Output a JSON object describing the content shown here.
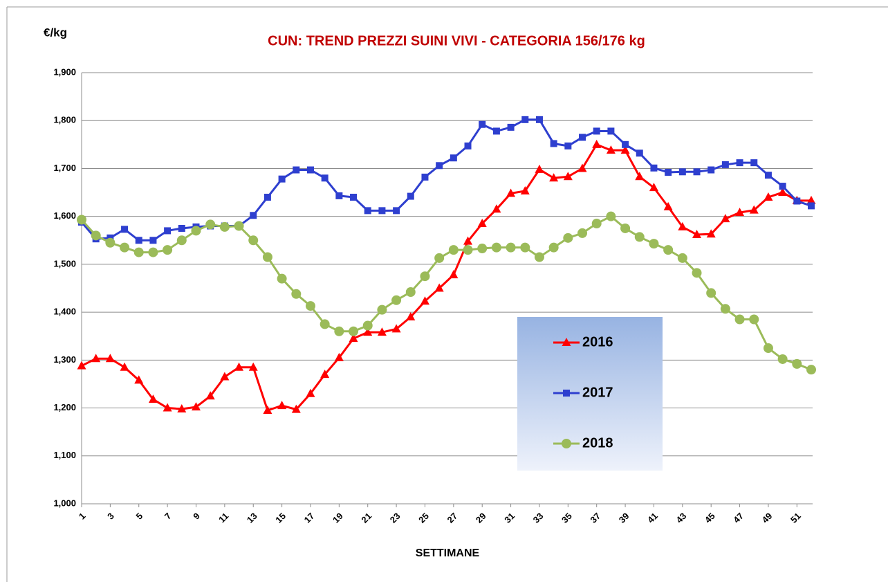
{
  "chart_data": {
    "type": "line",
    "title": "CUN:  TREND PREZZI SUINI VIVI - CATEGORIA 156/176 kg",
    "y_label": "€/kg",
    "x_label": "SETTIMANE",
    "x": [
      1,
      2,
      3,
      4,
      5,
      6,
      7,
      8,
      9,
      10,
      11,
      12,
      13,
      14,
      15,
      16,
      17,
      18,
      19,
      20,
      21,
      22,
      23,
      24,
      25,
      26,
      27,
      28,
      29,
      30,
      31,
      32,
      33,
      34,
      35,
      36,
      37,
      38,
      39,
      40,
      41,
      42,
      43,
      44,
      45,
      46,
      47,
      48,
      49,
      50,
      51,
      52
    ],
    "xlim": [
      1,
      52
    ],
    "xticks": [
      1,
      3,
      5,
      7,
      9,
      11,
      13,
      15,
      17,
      19,
      21,
      23,
      25,
      27,
      29,
      31,
      33,
      35,
      37,
      39,
      41,
      43,
      45,
      47,
      49,
      51
    ],
    "ylim": [
      1.0,
      1.9
    ],
    "yticks": [
      {
        "value": 1.0,
        "label": "1,000"
      },
      {
        "value": 1.1,
        "label": "1,100"
      },
      {
        "value": 1.2,
        "label": "1,200"
      },
      {
        "value": 1.3,
        "label": "1,300"
      },
      {
        "value": 1.4,
        "label": "1,400"
      },
      {
        "value": 1.5,
        "label": "1,500"
      },
      {
        "value": 1.6,
        "label": "1,600"
      },
      {
        "value": 1.7,
        "label": "1,700"
      },
      {
        "value": 1.8,
        "label": "1,800"
      },
      {
        "value": 1.9,
        "label": "1,900"
      }
    ],
    "grid": true,
    "series": [
      {
        "name": "2016",
        "color": "#ff0000",
        "marker": "triangle",
        "values": [
          1.288,
          1.303,
          1.303,
          1.285,
          1.258,
          1.218,
          1.2,
          1.198,
          1.202,
          1.225,
          1.265,
          1.285,
          1.285,
          1.195,
          1.205,
          1.197,
          1.23,
          1.27,
          1.305,
          1.345,
          1.358,
          1.358,
          1.365,
          1.39,
          1.423,
          1.45,
          1.478,
          1.548,
          1.585,
          1.615,
          1.648,
          1.653,
          1.698,
          1.68,
          1.683,
          1.7,
          1.75,
          1.738,
          1.738,
          1.683,
          1.66,
          1.62,
          1.578,
          1.562,
          1.563,
          1.595,
          1.608,
          1.613,
          1.64,
          1.65,
          1.633,
          1.633
        ]
      },
      {
        "name": "2017",
        "color": "#2e3fcf",
        "marker": "square",
        "values": [
          1.588,
          1.553,
          1.555,
          1.573,
          1.55,
          1.55,
          1.57,
          1.575,
          1.578,
          1.58,
          1.58,
          1.58,
          1.602,
          1.64,
          1.678,
          1.697,
          1.697,
          1.68,
          1.643,
          1.64,
          1.612,
          1.612,
          1.612,
          1.642,
          1.682,
          1.706,
          1.722,
          1.747,
          1.792,
          1.778,
          1.786,
          1.802,
          1.802,
          1.752,
          1.747,
          1.765,
          1.778,
          1.778,
          1.75,
          1.732,
          1.701,
          1.692,
          1.693,
          1.693,
          1.697,
          1.708,
          1.712,
          1.712,
          1.686,
          1.663,
          1.632,
          1.622
        ]
      },
      {
        "name": "2018",
        "color": "#9bbb59",
        "marker": "circle",
        "values": [
          1.593,
          1.56,
          1.545,
          1.535,
          1.525,
          1.525,
          1.53,
          1.55,
          1.57,
          1.583,
          1.578,
          1.58,
          1.55,
          1.515,
          1.47,
          1.438,
          1.413,
          1.375,
          1.36,
          1.36,
          1.372,
          1.405,
          1.425,
          1.442,
          1.475,
          1.513,
          1.53,
          1.53,
          1.533,
          1.535,
          1.535,
          1.535,
          1.515,
          1.535,
          1.555,
          1.565,
          1.585,
          1.6,
          1.575,
          1.557,
          1.543,
          1.53,
          1.513,
          1.482,
          1.44,
          1.407,
          1.385,
          1.385,
          1.325,
          1.302,
          1.292,
          1.28
        ]
      }
    ]
  }
}
